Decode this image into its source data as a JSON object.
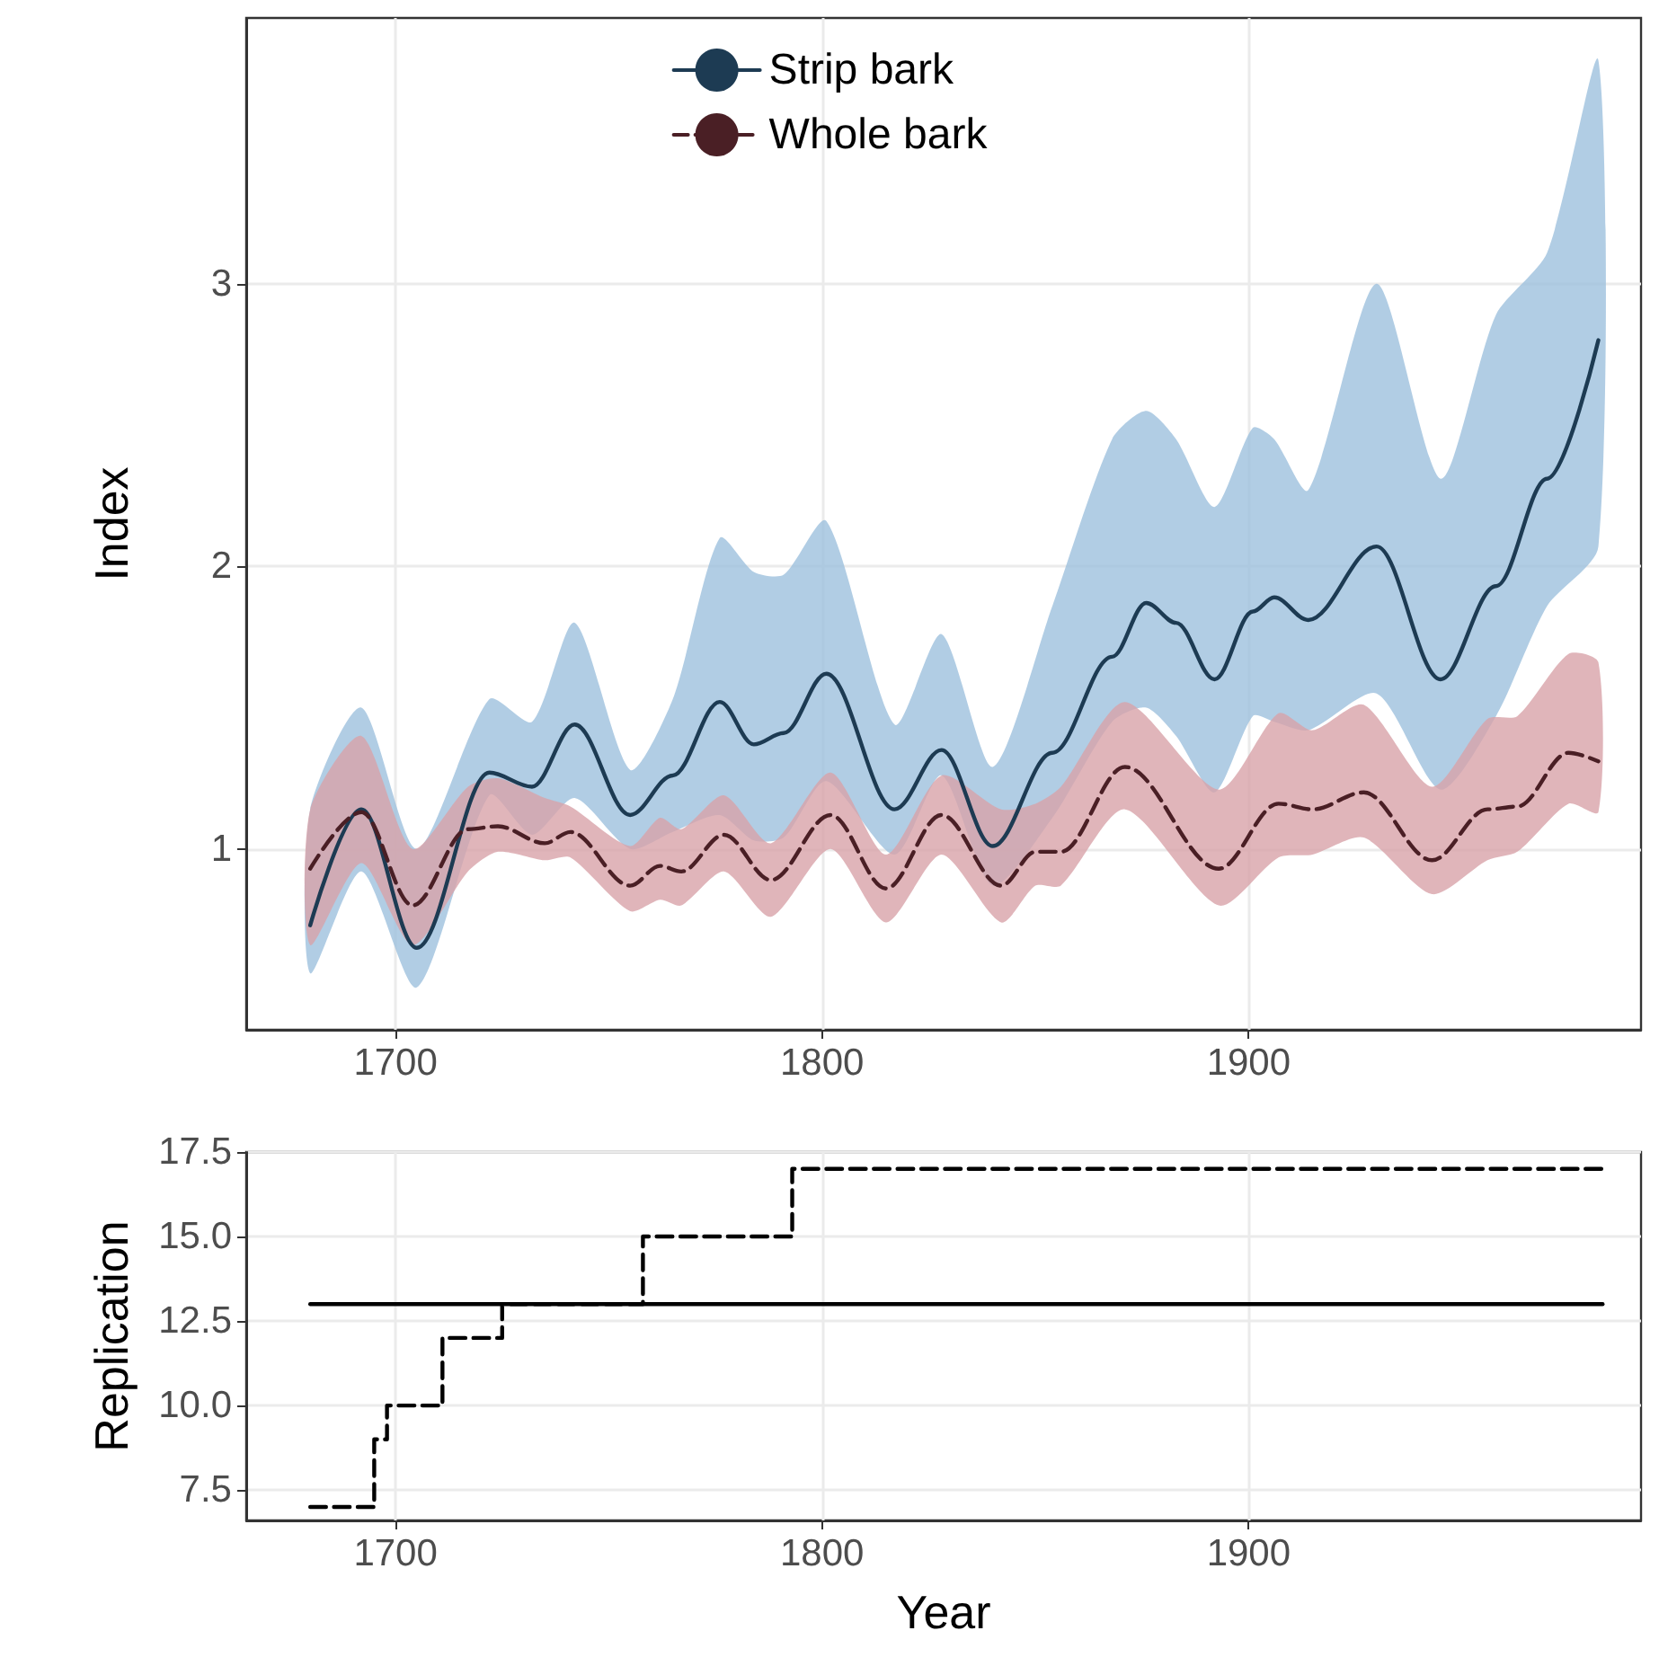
{
  "chart_data": [
    {
      "type": "line",
      "ylabel": "Index",
      "xlim": [
        1665,
        1992
      ],
      "ylim": [
        0.36,
        3.94
      ],
      "xticks": [
        1700,
        1800,
        1900
      ],
      "yticks": [
        1,
        2,
        3
      ],
      "grid": true,
      "legend": "top",
      "marker": "none",
      "series": [
        {
          "name": "Strip bark",
          "color": "#1d3b53",
          "line_style": "solid",
          "x": [
            1680,
            1692,
            1705,
            1722,
            1732,
            1742,
            1755,
            1765,
            1776,
            1784,
            1791,
            1801,
            1817,
            1828,
            1840,
            1854,
            1868,
            1876,
            1883,
            1892,
            1901,
            1906,
            1914,
            1930,
            1945,
            1958,
            1970,
            1982
          ],
          "values": [
            0.73,
            1.14,
            0.65,
            1.27,
            1.22,
            1.44,
            1.12,
            1.26,
            1.52,
            1.37,
            1.41,
            1.62,
            1.14,
            1.35,
            1.01,
            1.34,
            1.68,
            1.87,
            1.8,
            1.6,
            1.84,
            1.89,
            1.81,
            2.07,
            1.6,
            1.93,
            2.31,
            2.8
          ],
          "upper": [
            1.14,
            1.5,
            1.0,
            1.53,
            1.45,
            1.8,
            1.28,
            1.53,
            2.1,
            1.98,
            1.97,
            2.16,
            1.44,
            1.76,
            1.29,
            1.86,
            2.45,
            2.55,
            2.45,
            2.21,
            2.49,
            2.45,
            2.27,
            3.0,
            2.31,
            2.89,
            3.11,
            3.79
          ],
          "lower": [
            0.56,
            0.92,
            0.51,
            1.19,
            1.05,
            1.18,
            1.0,
            1.06,
            1.12,
            1.03,
            1.04,
            1.24,
            0.98,
            1.26,
            0.87,
            1.11,
            1.45,
            1.5,
            1.4,
            1.2,
            1.47,
            1.45,
            1.42,
            1.55,
            1.21,
            1.47,
            1.86,
            2.07
          ]
        },
        {
          "name": "Whole bark",
          "color": "#4a1f25",
          "line_style": "dashed",
          "x": [
            1680,
            1692,
            1704,
            1717,
            1724,
            1735,
            1741,
            1755,
            1762,
            1767,
            1777,
            1788,
            1802,
            1815,
            1828,
            1842,
            1850,
            1856,
            1871,
            1893,
            1907,
            1915,
            1927,
            1943,
            1956,
            1963,
            1975,
            1982
          ],
          "values": [
            0.93,
            1.13,
            0.8,
            1.07,
            1.08,
            1.02,
            1.06,
            0.87,
            0.94,
            0.92,
            1.05,
            0.89,
            1.12,
            0.86,
            1.12,
            0.87,
            0.99,
            0.99,
            1.29,
            0.93,
            1.16,
            1.14,
            1.2,
            0.96,
            1.14,
            1.15,
            1.34,
            1.31
          ],
          "upper": [
            1.14,
            1.4,
            1.0,
            1.22,
            1.25,
            1.18,
            1.15,
            1.01,
            1.11,
            1.07,
            1.19,
            1.02,
            1.27,
            0.98,
            1.26,
            1.14,
            1.16,
            1.22,
            1.52,
            1.21,
            1.48,
            1.42,
            1.51,
            1.22,
            1.46,
            1.47,
            1.69,
            1.66
          ],
          "lower": [
            0.66,
            0.95,
            0.66,
            0.92,
            0.99,
            0.96,
            0.97,
            0.78,
            0.82,
            0.8,
            0.92,
            0.76,
            1.0,
            0.74,
            0.98,
            0.74,
            0.87,
            0.87,
            1.14,
            0.8,
            0.97,
            0.98,
            1.04,
            0.84,
            0.96,
            0.99,
            1.16,
            1.13
          ]
        }
      ]
    },
    {
      "type": "step",
      "xlabel": "Year",
      "ylabel": "Replication",
      "xlim": [
        1665,
        1992
      ],
      "ylim": [
        6.6,
        17.5
      ],
      "xticks": [
        1700,
        1800,
        1900
      ],
      "yticks": [
        {
          "value": 7.5,
          "label": "7.5"
        },
        {
          "value": 10,
          "label": "10.0"
        },
        {
          "value": 12.5,
          "label": "12.5"
        },
        {
          "value": 15,
          "label": "15.0"
        },
        {
          "value": 17.5,
          "label": "17.5"
        }
      ],
      "grid": true,
      "marker": "none",
      "series": [
        {
          "color": "#000000",
          "line_style": "dashed",
          "x": [
            1680,
            1695,
            1698,
            1711,
            1725,
            1758,
            1793,
            1983
          ],
          "values": [
            7,
            9,
            10,
            12,
            13,
            15,
            17,
            17
          ]
        },
        {
          "color": "#000000",
          "line_style": "solid",
          "x": [
            1680,
            1983
          ],
          "values": [
            13,
            13
          ]
        }
      ]
    }
  ]
}
